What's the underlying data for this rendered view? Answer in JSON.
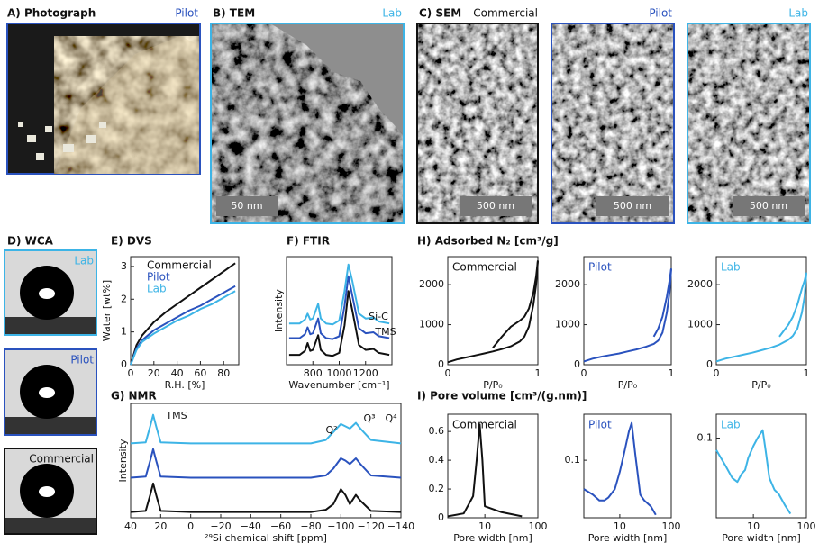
{
  "panels": {
    "A": {
      "label": "A) Photograph",
      "tag": "Pilot"
    },
    "B": {
      "label": "B) TEM",
      "tag": "Lab",
      "scale": "50 nm"
    },
    "C": {
      "label": "C) SEM",
      "images": [
        {
          "tag": "Commercial",
          "scale": "500 nm"
        },
        {
          "tag": "Pilot",
          "scale": "500 nm"
        },
        {
          "tag": "Lab",
          "scale": "500 nm"
        }
      ]
    },
    "D": {
      "label": "D) WCA",
      "images": [
        {
          "tag": "Lab"
        },
        {
          "tag": "Pilot"
        },
        {
          "tag": "Commercial"
        }
      ]
    }
  },
  "chart_data": [
    {
      "type": "line",
      "title": "E) DVS",
      "xlabel": "R.H. [%]",
      "ylabel": "Water [wt%]",
      "x": [
        0,
        5,
        10,
        20,
        30,
        40,
        50,
        60,
        70,
        80,
        90
      ],
      "series": [
        {
          "name": "Commercial",
          "color": "#111111",
          "values": [
            0,
            0.6,
            0.9,
            1.3,
            1.6,
            1.85,
            2.1,
            2.35,
            2.6,
            2.85,
            3.1
          ]
        },
        {
          "name": "Pilot",
          "color": "#2a52be",
          "values": [
            0,
            0.5,
            0.75,
            1.05,
            1.25,
            1.45,
            1.65,
            1.8,
            2.0,
            2.2,
            2.4
          ]
        },
        {
          "name": "Lab",
          "color": "#3db4e6",
          "values": [
            0,
            0.45,
            0.7,
            0.95,
            1.15,
            1.35,
            1.5,
            1.7,
            1.85,
            2.05,
            2.25
          ]
        }
      ],
      "xlim": [
        0,
        93
      ],
      "xticks": [
        0,
        20,
        40,
        60,
        80
      ],
      "ylim": [
        0,
        3.3
      ],
      "yticks": [
        0,
        1,
        2,
        3
      ],
      "legend": "upper left"
    },
    {
      "type": "line",
      "title": "F) FTIR",
      "xlabel": "Wavenumber [cm⁻¹]",
      "ylabel": "Intensity",
      "annotations": [
        "Si-C",
        "TMS"
      ],
      "x": [
        620,
        700,
        740,
        760,
        780,
        800,
        840,
        860,
        900,
        950,
        1000,
        1040,
        1070,
        1100,
        1150,
        1200,
        1260,
        1300,
        1380
      ],
      "series": [
        {
          "color": "#111111",
          "values": [
            0.1,
            0.1,
            0.14,
            0.22,
            0.14,
            0.15,
            0.3,
            0.15,
            0.1,
            0.09,
            0.12,
            0.4,
            0.75,
            0.55,
            0.2,
            0.15,
            0.16,
            0.12,
            0.1
          ]
        },
        {
          "color": "#2a52be",
          "values": [
            0.27,
            0.27,
            0.31,
            0.38,
            0.31,
            0.32,
            0.47,
            0.32,
            0.27,
            0.26,
            0.29,
            0.6,
            0.9,
            0.7,
            0.37,
            0.32,
            0.33,
            0.29,
            0.27
          ]
        },
        {
          "color": "#3db4e6",
          "values": [
            0.42,
            0.42,
            0.46,
            0.52,
            0.46,
            0.47,
            0.62,
            0.47,
            0.42,
            0.41,
            0.45,
            0.75,
            1.02,
            0.85,
            0.52,
            0.47,
            0.48,
            0.44,
            0.42
          ]
        }
      ],
      "xlim": [
        600,
        1400
      ],
      "xticks": [
        800,
        1000,
        1200
      ],
      "ylim": [
        0,
        1.1
      ]
    },
    {
      "type": "line",
      "title": "G) NMR",
      "xlabel": "²⁹Si chemical shift [ppm]",
      "ylabel": "Intensity",
      "annotations": [
        "TMS",
        "Q²",
        "Q³",
        "Q⁴"
      ],
      "x": [
        40,
        30,
        27,
        25,
        23,
        20,
        0,
        -80,
        -90,
        -95,
        -100,
        -103,
        -106,
        -110,
        -113,
        -120,
        -140
      ],
      "series": [
        {
          "color": "#111111",
          "values": [
            0.05,
            0.06,
            0.2,
            0.3,
            0.2,
            0.06,
            0.05,
            0.05,
            0.07,
            0.12,
            0.25,
            0.2,
            0.12,
            0.2,
            0.15,
            0.06,
            0.05
          ]
        },
        {
          "color": "#2a52be",
          "values": [
            0.35,
            0.36,
            0.5,
            0.6,
            0.5,
            0.36,
            0.35,
            0.35,
            0.37,
            0.43,
            0.52,
            0.5,
            0.47,
            0.52,
            0.47,
            0.37,
            0.35
          ]
        },
        {
          "color": "#3db4e6",
          "values": [
            0.65,
            0.66,
            0.8,
            0.9,
            0.8,
            0.66,
            0.65,
            0.65,
            0.68,
            0.75,
            0.82,
            0.8,
            0.78,
            0.83,
            0.78,
            0.68,
            0.65
          ]
        }
      ],
      "xlim": [
        40,
        -140
      ],
      "xticks": [
        40,
        20,
        0,
        {
          "value": -20,
          "label": "−20"
        },
        {
          "value": -40,
          "label": "−40"
        },
        {
          "value": -60,
          "label": "−60"
        },
        {
          "value": -80,
          "label": "−80"
        },
        {
          "value": -100,
          "label": "−100"
        },
        {
          "value": -120,
          "label": "−120"
        },
        {
          "value": -140,
          "label": "−140"
        }
      ],
      "ylim": [
        0,
        1
      ]
    },
    {
      "type": "line",
      "title": "H) Adsorbed N₂ [cm³/g]",
      "subtitle": "Commercial",
      "xlabel": "P/P₀",
      "x": [
        0,
        0.1,
        0.2,
        0.3,
        0.4,
        0.5,
        0.6,
        0.7,
        0.8,
        0.85,
        0.9,
        0.95,
        0.98,
        1
      ],
      "series": [
        {
          "color": "#111111",
          "values": [
            60,
            130,
            180,
            230,
            280,
            330,
            390,
            460,
            580,
            700,
            950,
            1500,
            2000,
            2600
          ]
        },
        {
          "color": "#111111",
          "values": [
            null,
            null,
            null,
            null,
            null,
            420,
            700,
            950,
            1100,
            1200,
            1400,
            1800,
            2200,
            2600
          ]
        }
      ],
      "xlim": [
        0,
        1
      ],
      "xticks": [
        0,
        1
      ],
      "ylim": [
        0,
        2700
      ],
      "yticks": [
        0,
        1000,
        2000
      ]
    },
    {
      "type": "line",
      "subtitle": "Pilot",
      "xlabel": "P/P₀",
      "x": [
        0,
        0.1,
        0.2,
        0.3,
        0.4,
        0.5,
        0.6,
        0.7,
        0.8,
        0.85,
        0.9,
        0.95,
        0.98,
        1
      ],
      "series": [
        {
          "color": "#2a52be",
          "values": [
            80,
            150,
            200,
            240,
            280,
            330,
            380,
            440,
            520,
            600,
            800,
            1300,
            1800,
            2400
          ]
        },
        {
          "color": "#2a52be",
          "values": [
            null,
            null,
            null,
            null,
            null,
            null,
            null,
            null,
            700,
            900,
            1200,
            1700,
            2100,
            2400
          ]
        }
      ],
      "xlim": [
        0,
        1
      ],
      "xticks": [
        0,
        1
      ],
      "ylim": [
        0,
        2700
      ],
      "yticks": [
        0,
        1000,
        2000
      ]
    },
    {
      "type": "line",
      "subtitle": "Lab",
      "xlabel": "P/P₀",
      "x": [
        0,
        0.1,
        0.2,
        0.3,
        0.4,
        0.5,
        0.6,
        0.7,
        0.8,
        0.85,
        0.9,
        0.95,
        0.98,
        1
      ],
      "series": [
        {
          "color": "#3db4e6",
          "values": [
            80,
            150,
            200,
            250,
            300,
            360,
            420,
            500,
            620,
            720,
            900,
            1300,
            1700,
            2300
          ]
        },
        {
          "color": "#3db4e6",
          "values": [
            null,
            null,
            null,
            null,
            null,
            null,
            null,
            700,
            1000,
            1200,
            1500,
            1900,
            2100,
            2300
          ]
        }
      ],
      "xlim": [
        0,
        1
      ],
      "xticks": [
        0,
        1
      ],
      "ylim": [
        0,
        2700
      ],
      "yticks": [
        0,
        1000,
        2000
      ]
    },
    {
      "type": "line",
      "title": "I) Pore volume [cm³/(g.nm)]",
      "subtitle": "Commercial",
      "xlabel": "Pore width [nm]",
      "xscale": "log",
      "x": [
        2,
        4,
        6,
        7,
        8,
        9,
        10,
        20,
        50
      ],
      "series": [
        {
          "color": "#111111",
          "values": [
            0.01,
            0.03,
            0.15,
            0.4,
            0.65,
            0.4,
            0.08,
            0.04,
            0.01
          ]
        }
      ],
      "xlim": [
        2,
        100
      ],
      "xticks": [
        10,
        100
      ],
      "ylim": [
        0,
        0.72
      ],
      "yticks": [
        0,
        0.2,
        0.4,
        0.6
      ]
    },
    {
      "type": "line",
      "subtitle": "Pilot",
      "xlabel": "Pore width [nm]",
      "xscale": "log",
      "x": [
        2,
        3,
        4,
        5,
        6,
        8,
        10,
        12,
        15,
        17,
        20,
        25,
        30,
        40,
        50
      ],
      "series": [
        {
          "color": "#2a52be",
          "values": [
            0.05,
            0.04,
            0.03,
            0.03,
            0.035,
            0.05,
            0.08,
            0.11,
            0.15,
            0.165,
            0.11,
            0.04,
            0.03,
            0.02,
            0.005
          ]
        }
      ],
      "xlim": [
        2,
        100
      ],
      "xticks": [
        10,
        100
      ],
      "ylim": [
        0,
        0.18
      ],
      "yticks": [
        0.1
      ]
    },
    {
      "type": "line",
      "subtitle": "Lab",
      "xlabel": "Pore width [nm]",
      "xscale": "log",
      "x": [
        2,
        3,
        4,
        5,
        6,
        7,
        8,
        10,
        12,
        15,
        17,
        20,
        25,
        30,
        40,
        50
      ],
      "series": [
        {
          "color": "#3db4e6",
          "values": [
            0.085,
            0.065,
            0.05,
            0.045,
            0.055,
            0.06,
            0.075,
            0.09,
            0.1,
            0.11,
            0.085,
            0.05,
            0.035,
            0.03,
            0.015,
            0.005
          ]
        }
      ],
      "xlim": [
        2,
        100
      ],
      "xticks": [
        10,
        100
      ],
      "ylim": [
        0,
        0.13
      ],
      "yticks": [
        0.1
      ]
    }
  ]
}
